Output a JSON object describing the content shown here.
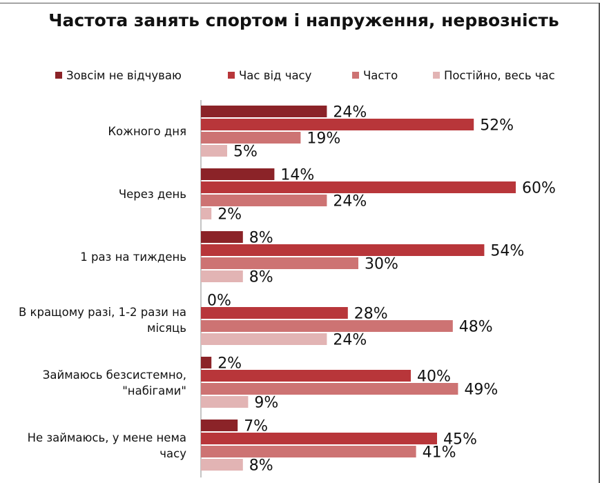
{
  "chart_data": {
    "type": "bar",
    "orientation": "horizontal",
    "title": "Частота занять спортом і напруження, нервозність",
    "categories": [
      "Кожного дня",
      "Через день",
      "1 раз на тиждень",
      "В кращому разі, 1-2 рази на місяць",
      "Займаюсь безсистемно, \"набігами\"",
      "Не займаюсь, у мене нема часу"
    ],
    "series": [
      {
        "name": "Зовсім не відчуваю",
        "color": "#8b2328",
        "values": [
          24,
          14,
          8,
          0,
          2,
          7
        ]
      },
      {
        "name": "Час від часу",
        "color": "#b8363a",
        "values": [
          52,
          60,
          54,
          28,
          40,
          45
        ]
      },
      {
        "name": "Часто",
        "color": "#cd7373",
        "values": [
          19,
          24,
          30,
          48,
          49,
          41
        ]
      },
      {
        "name": "Постійно, весь час",
        "color": "#e2b4b4",
        "values": [
          5,
          2,
          8,
          24,
          9,
          8
        ]
      }
    ],
    "value_suffix": "%",
    "legend_position": "top",
    "grid": false
  }
}
